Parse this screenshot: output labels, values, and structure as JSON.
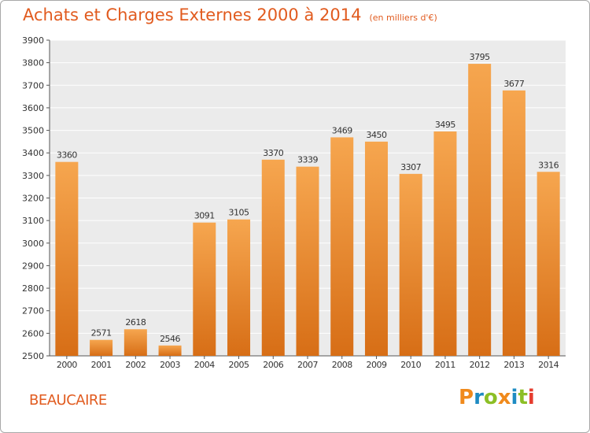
{
  "header": {
    "title": "Achats et Charges Externes 2000 à 2014",
    "subtitle": "(en milliers d'€)"
  },
  "footer": {
    "commune": "BEAUCAIRE",
    "logo_text": "Proxiti",
    "logo_colors": [
      "#f08a1c",
      "#1e8bc3",
      "#8cbf26",
      "#f08a1c",
      "#1e8bc3",
      "#8cbf26",
      "#e63c2e"
    ]
  },
  "colors": {
    "accent": "#e15b1f",
    "bar_light": "#f6a64f",
    "bar_dark": "#d76e16",
    "plot_bg": "#ebebeb",
    "grid": "#ffffff"
  },
  "chart_data": {
    "type": "bar",
    "title": "Achats et Charges Externes 2000 à 2014",
    "subtitle": "(en milliers d'€)",
    "categories": [
      "2000",
      "2001",
      "2002",
      "2003",
      "2004",
      "2005",
      "2006",
      "2007",
      "2008",
      "2009",
      "2010",
      "2011",
      "2012",
      "2013",
      "2014"
    ],
    "values": [
      3360,
      2571,
      2618,
      2546,
      3091,
      3105,
      3370,
      3339,
      3469,
      3450,
      3307,
      3495,
      3795,
      3677,
      3316
    ],
    "ylim": [
      2500,
      3900
    ],
    "yticks": [
      2500,
      2600,
      2700,
      2800,
      2900,
      3000,
      3100,
      3200,
      3300,
      3400,
      3500,
      3600,
      3700,
      3800,
      3900
    ],
    "grid": true,
    "data_labels": true
  }
}
